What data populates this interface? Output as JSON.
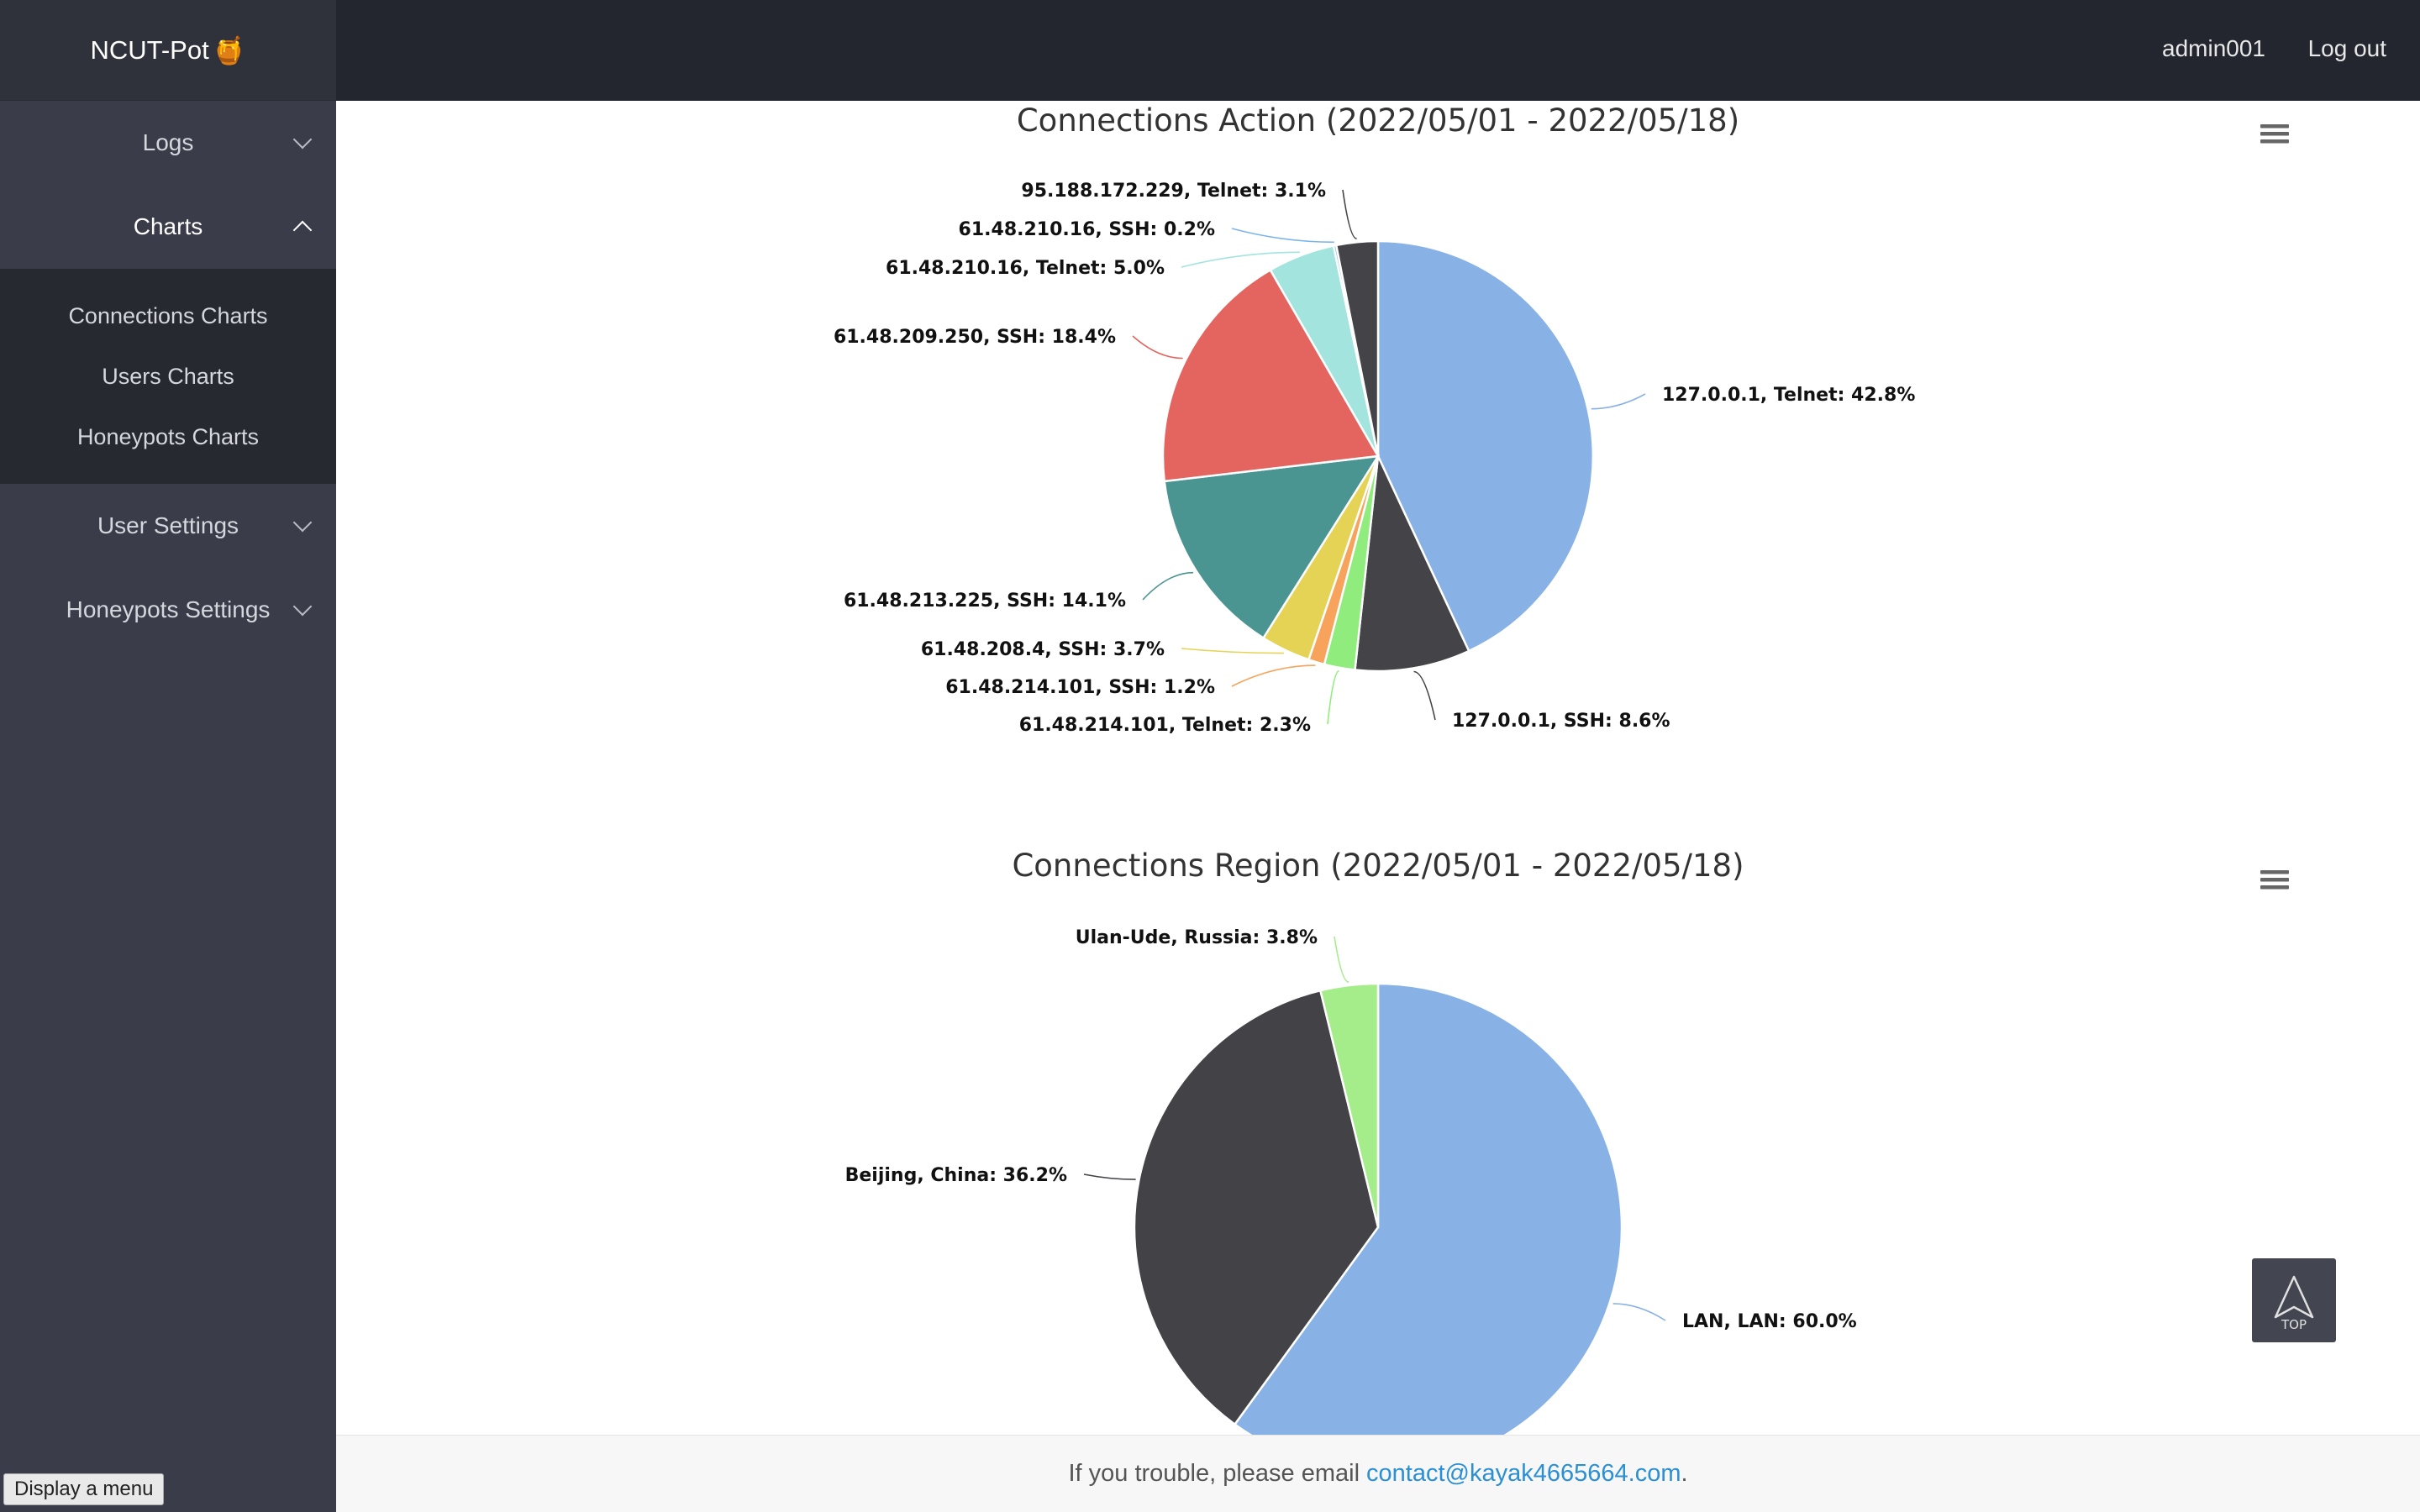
{
  "brand": {
    "title": "NCUT-Pot"
  },
  "sidebar": {
    "items": [
      {
        "label": "Logs"
      },
      {
        "label": "Charts",
        "children": [
          "Connections Charts",
          "Users Charts",
          "Honeypots Charts"
        ]
      },
      {
        "label": "User Settings"
      },
      {
        "label": "Honeypots Settings"
      }
    ],
    "display_menu": "Display a menu"
  },
  "header": {
    "user": "admin001",
    "logout": "Log out"
  },
  "footer": {
    "text": "If you trouble, please email",
    "email": "contact@kayak4665664.com",
    "period": "."
  },
  "back_to_top": {
    "label": "TOP"
  },
  "chart_data": [
    {
      "type": "pie",
      "title": "Connections Action (2022/05/01 - 2022/05/18)",
      "categories": [
        "127.0.0.1, Telnet",
        "127.0.0.1, SSH",
        "61.48.214.101, Telnet",
        "61.48.214.101, SSH",
        "61.48.208.4, SSH",
        "61.48.213.225, SSH",
        "61.48.209.250, SSH",
        "61.48.210.16, Telnet",
        "61.48.210.16, SSH",
        "95.188.172.229, Telnet"
      ],
      "values": [
        42.8,
        8.6,
        2.3,
        1.2,
        3.7,
        14.1,
        18.4,
        5.0,
        0.2,
        3.1
      ],
      "labels": [
        "127.0.0.1, Telnet: 42.8%",
        "127.0.0.1, SSH: 8.6%",
        "61.48.214.101, Telnet: 2.3%",
        "61.48.214.101, SSH: 1.2%",
        "61.48.208.4, SSH: 3.7%",
        "61.48.213.225, SSH: 14.1%",
        "61.48.209.250, SSH: 18.4%",
        "61.48.210.16, Telnet: 5.0%",
        "61.48.210.16, SSH: 0.2%",
        "95.188.172.229, Telnet: 3.1%"
      ],
      "colors": [
        "#88b2e6",
        "#434348",
        "#90ed7d",
        "#f7a35c",
        "#8085e9",
        "#e4d354",
        "#2b908f",
        "#4a9591",
        "#e4655f",
        "#a4e4df",
        "#7cb5ec",
        "#434348"
      ]
    },
    {
      "type": "pie",
      "title": "Connections Region (2022/05/01 - 2022/05/18)",
      "categories": [
        "LAN, LAN",
        "Beijing, China",
        "Ulan-Ude, Russia"
      ],
      "values": [
        60.0,
        36.2,
        3.8
      ],
      "labels": [
        "LAN, LAN: 60.0%",
        "Beijing, China: 36.2%",
        "Ulan-Ude, Russia: 3.8%"
      ],
      "colors": [
        "#88b2e6",
        "#424247",
        "#a5ec8a"
      ]
    }
  ]
}
